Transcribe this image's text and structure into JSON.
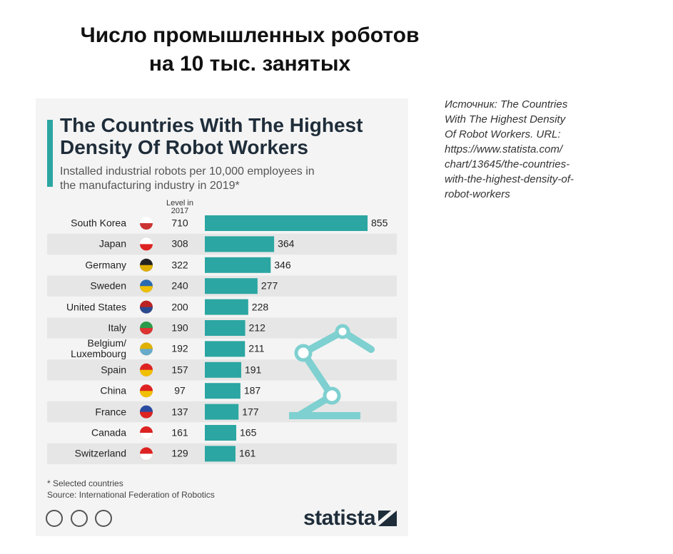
{
  "slide": {
    "title": "Число промышленных роботов\nна 10 тыс. занятых",
    "source_note": "Источник: The Countries\nWith The Highest Density\nOf Robot Workers. URL:\nhttps://www.statista.com/\nchart/13645/the-countries-\nwith-the-highest-density-of-\nrobot-workers"
  },
  "chart_data": {
    "type": "bar",
    "orientation": "horizontal",
    "title": "The Countries With The Highest\nDensity Of Robot Workers",
    "subtitle": "Installed industrial robots per 10,000 employees in\nthe manufacturing industry in 2019*",
    "level_header": "Level in\n2017",
    "categories": [
      "South Korea",
      "Japan",
      "Germany",
      "Sweden",
      "United States",
      "Italy",
      "Belgium/\nLuxembourg",
      "Spain",
      "China",
      "France",
      "Canada",
      "Switzerland"
    ],
    "values": [
      855,
      364,
      346,
      277,
      228,
      212,
      211,
      191,
      187,
      177,
      165,
      161
    ],
    "level_2017": [
      710,
      308,
      322,
      240,
      200,
      190,
      192,
      157,
      97,
      137,
      161,
      129
    ],
    "color": "#2ba6a2",
    "footnote": "* Selected countries",
    "source": "Source: International Federation of Robotics",
    "brand": "statista"
  }
}
